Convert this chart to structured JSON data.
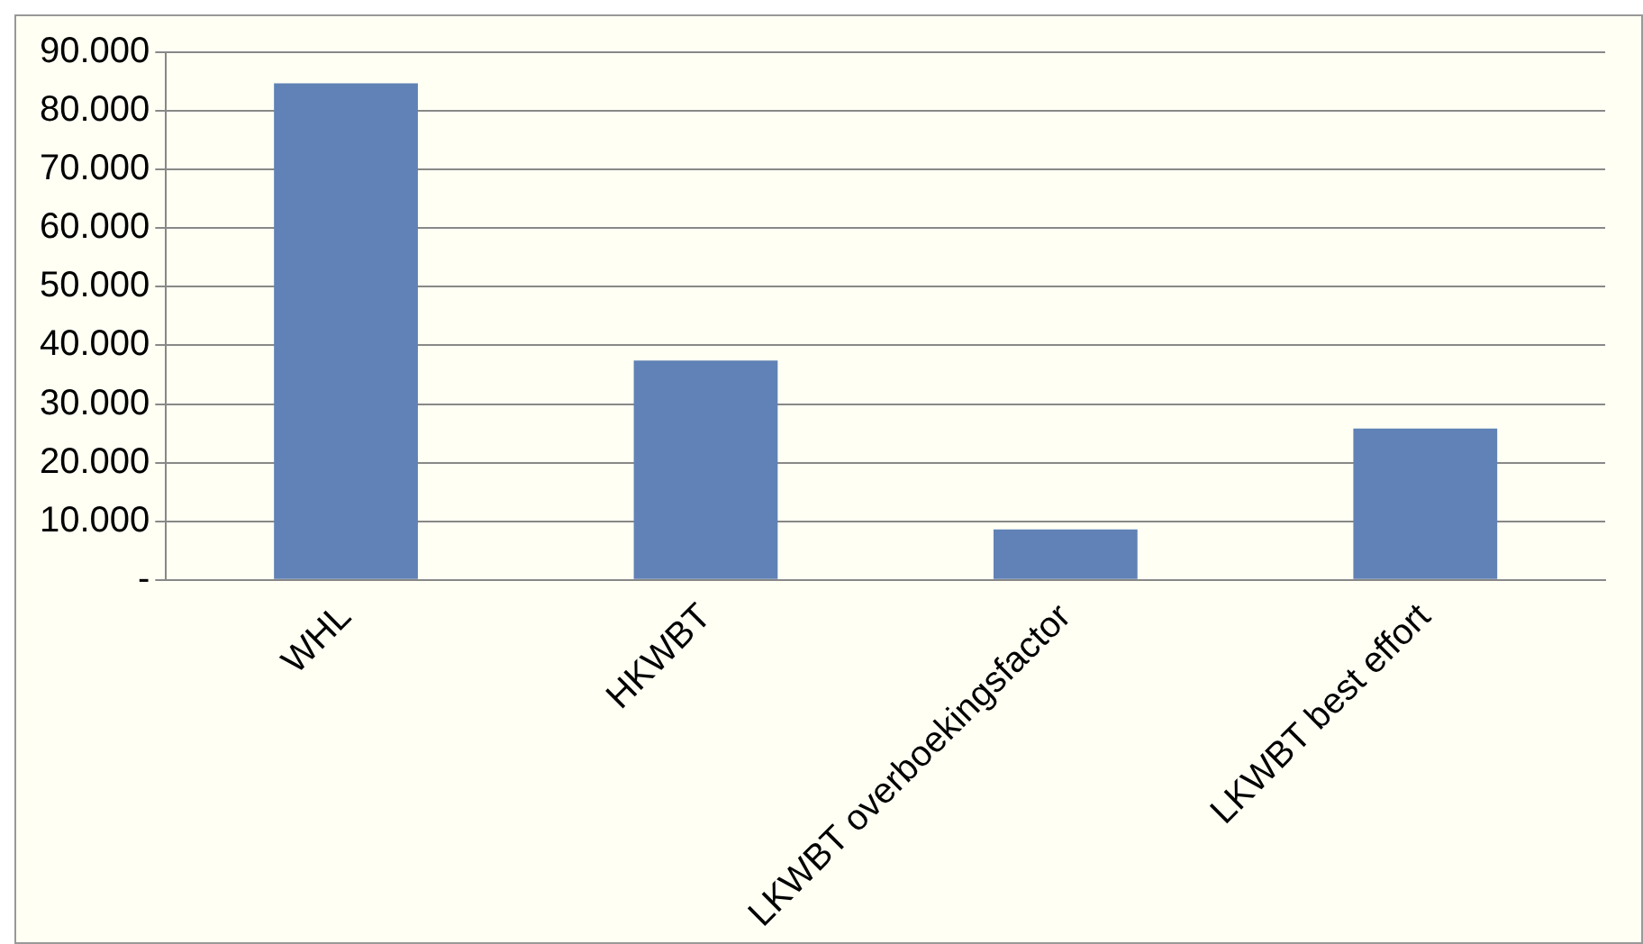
{
  "chart_data": {
    "type": "bar",
    "categories": [
      "WHL",
      "HKWBT",
      "LKWBT overboekingsfactor",
      "LKWBT best effort"
    ],
    "values": [
      84700,
      37400,
      8600,
      25800
    ],
    "color": "#6082b6",
    "ylim": [
      0,
      90000
    ],
    "yticks": [
      {
        "value": 0,
        "label": "-"
      },
      {
        "value": 10000,
        "label": "10.000"
      },
      {
        "value": 20000,
        "label": "20.000"
      },
      {
        "value": 30000,
        "label": "30.000"
      },
      {
        "value": 40000,
        "label": "40.000"
      },
      {
        "value": 50000,
        "label": "50.000"
      },
      {
        "value": 60000,
        "label": "60.000"
      },
      {
        "value": 70000,
        "label": "70.000"
      },
      {
        "value": 80000,
        "label": "80.000"
      },
      {
        "value": 90000,
        "label": "90.000"
      }
    ],
    "grid": "y",
    "legend": false
  }
}
